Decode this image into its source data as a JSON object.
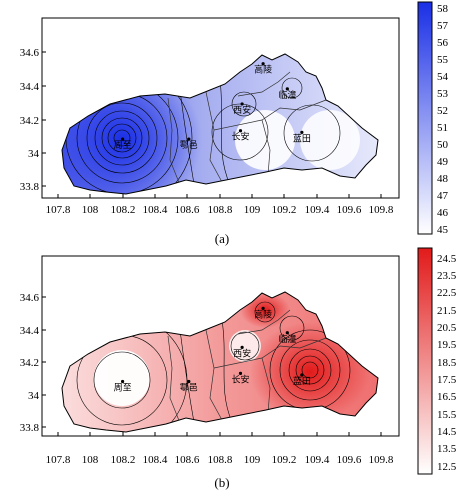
{
  "panel_a": {
    "caption": "(a)",
    "x_ticks": [
      "107.8",
      "108",
      "108.2",
      "108.4",
      "108.6",
      "108.8",
      "109",
      "109.2",
      "109.4",
      "109.6",
      "109.8"
    ],
    "y_ticks": [
      "34.6",
      "34.4",
      "34.2",
      "34",
      "33.8"
    ],
    "colorbar": [
      "58",
      "57",
      "56",
      "55",
      "54",
      "53",
      "52",
      "51",
      "50",
      "49",
      "48",
      "47",
      "46",
      "45"
    ],
    "colors": {
      "high": "#1a2fe6",
      "low": "#ffffff"
    },
    "cities": [
      {
        "name": "高陵",
        "lon": 109.07,
        "lat": 34.53
      },
      {
        "name": "临潼",
        "lon": 109.22,
        "lat": 34.38
      },
      {
        "name": "西安",
        "lon": 108.94,
        "lat": 34.29
      },
      {
        "name": "长安",
        "lon": 108.93,
        "lat": 34.13
      },
      {
        "name": "蓝田",
        "lon": 109.31,
        "lat": 34.12
      },
      {
        "name": "周至",
        "lon": 108.2,
        "lat": 34.08
      },
      {
        "name": "鄠邑",
        "lon": 108.61,
        "lat": 34.08
      }
    ]
  },
  "panel_b": {
    "caption": "(b)",
    "x_ticks": [
      "107.8",
      "108",
      "108.2",
      "108.4",
      "108.6",
      "108.8",
      "109",
      "109.2",
      "109.4",
      "109.6",
      "109.8"
    ],
    "y_ticks": [
      "34.6",
      "34.4",
      "34.2",
      "34",
      "33.8"
    ],
    "colorbar": [
      "24.5",
      "23.5",
      "22.5",
      "21.5",
      "20.5",
      "19.5",
      "18.5",
      "17.5",
      "16.5",
      "15.5",
      "14.5",
      "13.5",
      "12.5"
    ],
    "colors": {
      "high": "#e21a1a",
      "low": "#ffffff"
    },
    "cities": [
      {
        "name": "高陵",
        "lon": 109.07,
        "lat": 34.53
      },
      {
        "name": "临潼",
        "lon": 109.22,
        "lat": 34.38
      },
      {
        "name": "西安",
        "lon": 108.94,
        "lat": 34.29
      },
      {
        "name": "长安",
        "lon": 108.93,
        "lat": 34.13
      },
      {
        "name": "蓝田",
        "lon": 109.31,
        "lat": 34.12
      },
      {
        "name": "周至",
        "lon": 108.2,
        "lat": 34.08
      },
      {
        "name": "鄠邑",
        "lon": 108.61,
        "lat": 34.08
      }
    ]
  }
}
